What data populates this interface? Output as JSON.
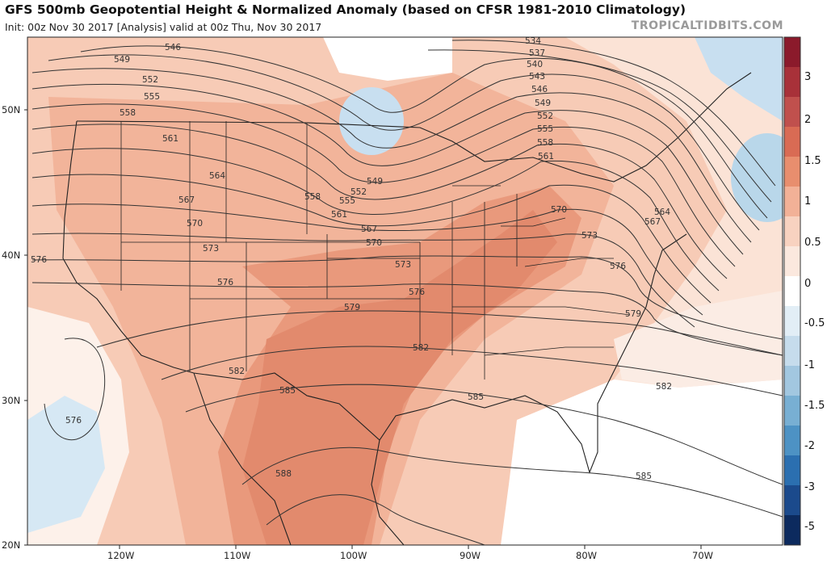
{
  "header": {
    "title": "GFS 500mb Geopotential Height & Normalized Anomaly (based on CFSR 1981-2010 Climatology)",
    "subtitle": "Init: 00z Nov 30 2017   [Analysis]   valid at 00z Thu, Nov 30 2017",
    "brand": "TROPICALTIDBITS.COM"
  },
  "map": {
    "lat_labels": [
      "50N",
      "40N",
      "30N",
      "20N"
    ],
    "lon_labels": [
      "120W",
      "110W",
      "100W",
      "90W",
      "80W",
      "70W"
    ],
    "contour_labels": [
      "534",
      "537",
      "540",
      "543",
      "546",
      "549",
      "552",
      "555",
      "558",
      "561",
      "564",
      "567",
      "570",
      "573",
      "576",
      "579",
      "582",
      "585",
      "588"
    ],
    "label_positions_text": []
  },
  "colorbar": {
    "labels": [
      "3",
      "2",
      "1.5",
      "1",
      "0.5",
      "0",
      "-0.5",
      "-1",
      "-1.5",
      "-2",
      "-3",
      "-5"
    ],
    "colors": [
      "#8b1a2b",
      "#a83139",
      "#c0504d",
      "#d96b54",
      "#e88e6e",
      "#f2b197",
      "#f8d2c0",
      "#fbe8de",
      "#ffffff",
      "#e2eef6",
      "#c6dcec",
      "#a2c7e0",
      "#78afd3",
      "#4d92c4",
      "#2b6fb0",
      "#1b4a8c",
      "#0c2a5e"
    ],
    "highlight": {
      "positive": "#e8956f",
      "negative": "#b9d7ea"
    }
  },
  "contour_text": {
    "c534": "534",
    "c537": "537",
    "c540": "540",
    "c543": "543",
    "c546a": "546",
    "c546b": "546",
    "c549a": "549",
    "c549b": "549",
    "c549c": "549",
    "c552a": "552",
    "c552b": "552",
    "c552c": "552",
    "c555a": "555",
    "c555b": "555",
    "c555c": "555",
    "c558a": "558",
    "c558b": "558",
    "c558c": "558",
    "c561a": "561",
    "c561b": "561",
    "c561c": "561",
    "c564a": "564",
    "c564b": "564",
    "c567a": "567",
    "c567b": "567",
    "c567c": "567",
    "c570a": "570",
    "c570b": "570",
    "c570c": "570",
    "c573a": "573",
    "c573b": "573",
    "c573c": "573",
    "c576a": "576",
    "c576b": "576",
    "c576c": "576",
    "c576d": "576",
    "c576e": "576",
    "c579a": "579",
    "c579b": "579",
    "c582a": "582",
    "c582b": "582",
    "c582c": "582",
    "c585a": "585",
    "c585b": "585",
    "c585c": "585",
    "c588": "588"
  }
}
